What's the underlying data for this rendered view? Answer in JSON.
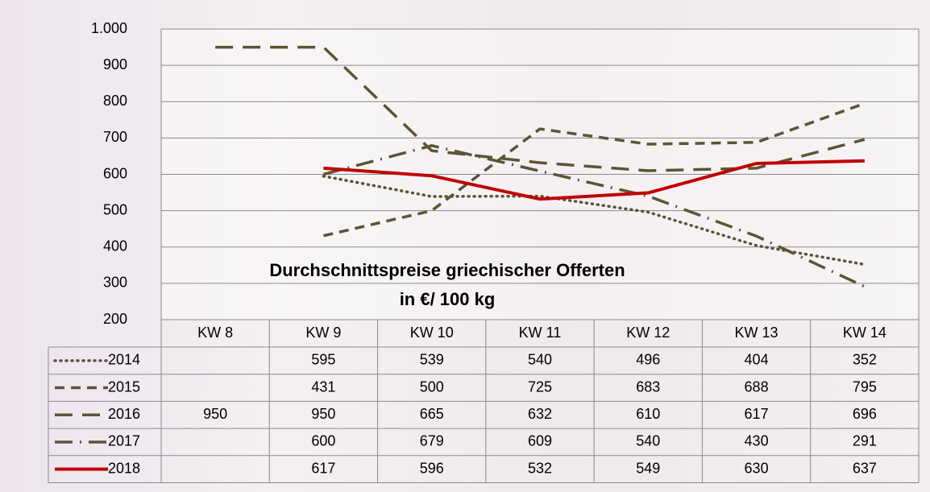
{
  "chart_data": {
    "type": "line",
    "title": "Durchschnittspreise griechischer Offerten",
    "subtitle": "in €/ 100 kg",
    "categories": [
      "KW 8",
      "KW 9",
      "KW 10",
      "KW 11",
      "KW 12",
      "KW 13",
      "KW 14"
    ],
    "series": [
      {
        "name": "2014",
        "color": "#5b5436",
        "dash": "dotted",
        "values": [
          null,
          595,
          539,
          540,
          496,
          404,
          352
        ]
      },
      {
        "name": "2015",
        "color": "#5b5436",
        "dash": "dashed",
        "values": [
          null,
          431,
          500,
          725,
          683,
          688,
          795
        ]
      },
      {
        "name": "2016",
        "color": "#5b5436",
        "dash": "long-dash",
        "values": [
          950,
          950,
          665,
          632,
          610,
          617,
          696
        ]
      },
      {
        "name": "2017",
        "color": "#5b5436",
        "dash": "dash-dot",
        "values": [
          null,
          600,
          679,
          609,
          540,
          430,
          291
        ]
      },
      {
        "name": "2018",
        "color": "#c00000",
        "dash": "solid",
        "values": [
          null,
          617,
          596,
          532,
          549,
          630,
          637
        ]
      }
    ],
    "ylim": [
      200,
      1000
    ],
    "yticks": [
      200,
      300,
      400,
      500,
      600,
      700,
      800,
      900,
      {
        "value": 1000,
        "label": "1.000"
      }
    ],
    "grid": true,
    "data_table": true
  }
}
